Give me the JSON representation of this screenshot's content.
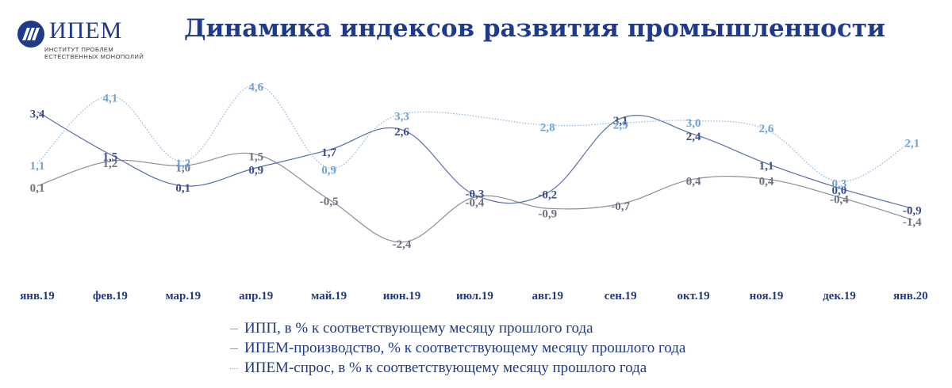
{
  "logo": {
    "name": "ИПЕМ",
    "subtitle": "ИНСТИТУТ ПРОБЛЕМ\nЕСТЕСТВЕННЫХ МОНОПОЛИЙ",
    "color": "#1f3a8a"
  },
  "title": "Динамика индексов развития промышленности",
  "legend": [
    "ИПП, в % к соответствующему месяцу прошлого года",
    "ИПЕМ-производство, % к соответствующему месяцу прошлого года",
    "ИПЕМ-спрос, в % к соответствующему месяцу прошлого года"
  ],
  "chart_data": {
    "type": "line",
    "title": "Динамика индексов развития промышленности",
    "categories": [
      "янв.19",
      "фев.19",
      "мар.19",
      "апр.19",
      "май.19",
      "июн.19",
      "июл.19",
      "авг.19",
      "сен.19",
      "окт.19",
      "ноя.19",
      "дек.19",
      "янв.20"
    ],
    "series": [
      {
        "name": "ИПП, в % к соответствующему месяцу прошлого года",
        "values": [
          0.1,
          1.2,
          1.0,
          1.5,
          -0.5,
          -2.4,
          -0.4,
          -0.9,
          -0.7,
          0.4,
          0.4,
          -0.4,
          -1.4
        ],
        "labels": [
          "0,1",
          "1,2",
          "1,0",
          "1,5",
          "-0,5",
          "-2,4",
          "-0,4",
          "-0,9",
          "-0,7",
          "0,4",
          "0,4",
          "-0,4",
          "-1,4"
        ],
        "color": "#8a8f98",
        "label_color": "#6b7180",
        "style": "solid"
      },
      {
        "name": "ИПЕМ-производство, % к соответствующему месяцу прошлого года",
        "values": [
          3.4,
          1.5,
          0.1,
          0.9,
          1.7,
          2.6,
          -0.3,
          -0.2,
          3.1,
          2.4,
          1.1,
          0.0,
          -0.9
        ],
        "labels": [
          "3,4",
          "1,5",
          "0,1",
          "0,9",
          "1,7",
          "2,6",
          "-0,3",
          "-0,2",
          "3,1",
          "2,4",
          "1,1",
          "0,0",
          "-0,9"
        ],
        "color": "#5a6fa8",
        "label_color": "#3a4f8a",
        "style": "solid"
      },
      {
        "name": "ИПЕМ-спрос, в % к соответствующему месяцу прошлого года",
        "values": [
          1.1,
          4.1,
          1.2,
          4.6,
          0.9,
          3.3,
          null,
          2.8,
          2.9,
          3.0,
          2.6,
          0.3,
          2.1
        ],
        "labels": [
          "1,1",
          "4,1",
          "1,2",
          "4,6",
          "0,9",
          "3,3",
          "",
          "2,8",
          "2,9",
          "3,0",
          "2,6",
          "0,3",
          "2,1"
        ],
        "color": "#8fb6dd",
        "label_color": "#6fa1d2",
        "style": "dotted"
      }
    ],
    "ylim": [
      -3.0,
      5.0
    ],
    "grid": false,
    "legend_position": "bottom"
  }
}
